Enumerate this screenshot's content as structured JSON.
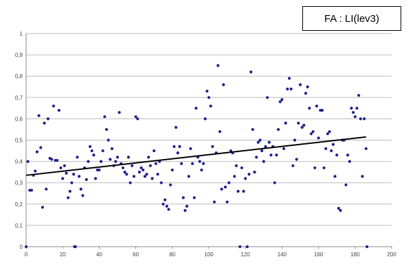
{
  "annotation": "FA : LI(lev3)",
  "chart_data": {
    "type": "scatter",
    "title": "",
    "xlabel": "",
    "ylabel": "",
    "xlim": [
      0,
      200
    ],
    "ylim": [
      0,
      1
    ],
    "x_ticks": [
      "0",
      "20",
      "40",
      "60",
      "80",
      "100",
      "120",
      "140",
      "160",
      "180",
      "200"
    ],
    "y_ticks": [
      "0",
      "0,1",
      "0,2",
      "0,3",
      "0,4",
      "0,5",
      "0,6",
      "0,7",
      "0,8",
      "0,9",
      "1"
    ],
    "grid": true,
    "marker_color": "#1f1f8c",
    "trendline": {
      "x": [
        0,
        186
      ],
      "y": [
        0.335,
        0.515
      ],
      "color": "#000000"
    },
    "points": [
      [
        0,
        0.0
      ],
      [
        1,
        0.4
      ],
      [
        2,
        0.265
      ],
      [
        3,
        0.265
      ],
      [
        4,
        0.335
      ],
      [
        5,
        0.355
      ],
      [
        6,
        0.445
      ],
      [
        7,
        0.615
      ],
      [
        8,
        0.465
      ],
      [
        9,
        0.185
      ],
      [
        10,
        0.58
      ],
      [
        11,
        0.27
      ],
      [
        12,
        0.6
      ],
      [
        13,
        0.415
      ],
      [
        14,
        0.41
      ],
      [
        15,
        0.66
      ],
      [
        16,
        0.405
      ],
      [
        17,
        0.405
      ],
      [
        18,
        0.64
      ],
      [
        19,
        0.37
      ],
      [
        20,
        0.32
      ],
      [
        21,
        0.38
      ],
      [
        22,
        0.345
      ],
      [
        23,
        0.23
      ],
      [
        24,
        0.26
      ],
      [
        25,
        0.3
      ],
      [
        26,
        0.34
      ],
      [
        26.5,
        0.0
      ],
      [
        27,
        0.0
      ],
      [
        28,
        0.42
      ],
      [
        29,
        0.33
      ],
      [
        30,
        0.27
      ],
      [
        31,
        0.24
      ],
      [
        32,
        0.37
      ],
      [
        33,
        0.315
      ],
      [
        34,
        0.4
      ],
      [
        35,
        0.47
      ],
      [
        36,
        0.45
      ],
      [
        37,
        0.43
      ],
      [
        38,
        0.32
      ],
      [
        39,
        0.36
      ],
      [
        40,
        0.36
      ],
      [
        41,
        0.4
      ],
      [
        42,
        0.45
      ],
      [
        43,
        0.61
      ],
      [
        44,
        0.55
      ],
      [
        45,
        0.5
      ],
      [
        46,
        0.41
      ],
      [
        47,
        0.46
      ],
      [
        48,
        0.38
      ],
      [
        49,
        0.4
      ],
      [
        50,
        0.42
      ],
      [
        51,
        0.63
      ],
      [
        52,
        0.39
      ],
      [
        53,
        0.37
      ],
      [
        54,
        0.35
      ],
      [
        55,
        0.34
      ],
      [
        56,
        0.42
      ],
      [
        57,
        0.3
      ],
      [
        58,
        0.38
      ],
      [
        59,
        0.33
      ],
      [
        60,
        0.61
      ],
      [
        61,
        0.6
      ],
      [
        62,
        0.35
      ],
      [
        63,
        0.37
      ],
      [
        64,
        0.36
      ],
      [
        65,
        0.33
      ],
      [
        66,
        0.34
      ],
      [
        67,
        0.42
      ],
      [
        68,
        0.38
      ],
      [
        69,
        0.32
      ],
      [
        70,
        0.45
      ],
      [
        71,
        0.39
      ],
      [
        72,
        0.34
      ],
      [
        73,
        0.4
      ],
      [
        74,
        0.3
      ],
      [
        75,
        0.2
      ],
      [
        76,
        0.22
      ],
      [
        77,
        0.19
      ],
      [
        78,
        0.175
      ],
      [
        79,
        0.29
      ],
      [
        80,
        0.36
      ],
      [
        81,
        0.47
      ],
      [
        82,
        0.56
      ],
      [
        83,
        0.44
      ],
      [
        84,
        0.47
      ],
      [
        85,
        0.39
      ],
      [
        86,
        0.23
      ],
      [
        87,
        0.17
      ],
      [
        88,
        0.19
      ],
      [
        89,
        0.33
      ],
      [
        90,
        0.46
      ],
      [
        91,
        0.39
      ],
      [
        92,
        0.23
      ],
      [
        93,
        0.65
      ],
      [
        94,
        0.42
      ],
      [
        95,
        0.4
      ],
      [
        96,
        0.36
      ],
      [
        97,
        0.39
      ],
      [
        98,
        0.6
      ],
      [
        99,
        0.73
      ],
      [
        100,
        0.7
      ],
      [
        101,
        0.66
      ],
      [
        102,
        0.47
      ],
      [
        103,
        0.21
      ],
      [
        104,
        0.44
      ],
      [
        105,
        0.85
      ],
      [
        106,
        0.54
      ],
      [
        107,
        0.27
      ],
      [
        108,
        0.76
      ],
      [
        109,
        0.28
      ],
      [
        110,
        0.21
      ],
      [
        111,
        0.3
      ],
      [
        112,
        0.45
      ],
      [
        113,
        0.44
      ],
      [
        114,
        0.33
      ],
      [
        115,
        0.38
      ],
      [
        116,
        0.26
      ],
      [
        117,
        0.0
      ],
      [
        118,
        0.37
      ],
      [
        119,
        0.26
      ],
      [
        120,
        0.32
      ],
      [
        121,
        0.0
      ],
      [
        122,
        0.34
      ],
      [
        123,
        0.82
      ],
      [
        124,
        0.55
      ],
      [
        125,
        0.35
      ],
      [
        126,
        0.42
      ],
      [
        127,
        0.49
      ],
      [
        128,
        0.5
      ],
      [
        129,
        0.45
      ],
      [
        130,
        0.4
      ],
      [
        131,
        0.47
      ],
      [
        132,
        0.7
      ],
      [
        133,
        0.49
      ],
      [
        134,
        0.43
      ],
      [
        135,
        0.47
      ],
      [
        136,
        0.3
      ],
      [
        137,
        0.43
      ],
      [
        138,
        0.55
      ],
      [
        139,
        0.68
      ],
      [
        140,
        0.69
      ],
      [
        141,
        0.46
      ],
      [
        142,
        0.58
      ],
      [
        143,
        0.74
      ],
      [
        144,
        0.79
      ],
      [
        145,
        0.74
      ],
      [
        146,
        0.38
      ],
      [
        147,
        0.5
      ],
      [
        148,
        0.41
      ],
      [
        149,
        0.58
      ],
      [
        150,
        0.76
      ],
      [
        151,
        0.56
      ],
      [
        152,
        0.57
      ],
      [
        153,
        0.72
      ],
      [
        154,
        0.75
      ],
      [
        155,
        0.65
      ],
      [
        156,
        0.53
      ],
      [
        157,
        0.54
      ],
      [
        158,
        0.37
      ],
      [
        159,
        0.66
      ],
      [
        160,
        0.51
      ],
      [
        161,
        0.64
      ],
      [
        162,
        0.64
      ],
      [
        163,
        0.37
      ],
      [
        164,
        0.46
      ],
      [
        165,
        0.53
      ],
      [
        166,
        0.54
      ],
      [
        167,
        0.45
      ],
      [
        168,
        0.48
      ],
      [
        169,
        0.33
      ],
      [
        170,
        0.43
      ],
      [
        171,
        0.18
      ],
      [
        172,
        0.17
      ],
      [
        173,
        0.5
      ],
      [
        174,
        0.5
      ],
      [
        175,
        0.29
      ],
      [
        176,
        0.43
      ],
      [
        177,
        0.4
      ],
      [
        178,
        0.65
      ],
      [
        179,
        0.63
      ],
      [
        180,
        0.61
      ],
      [
        181,
        0.65
      ],
      [
        182,
        0.71
      ],
      [
        183,
        0.6
      ],
      [
        184,
        0.33
      ],
      [
        185,
        0.6
      ],
      [
        186,
        0.46
      ],
      [
        186.5,
        0.0
      ]
    ]
  }
}
